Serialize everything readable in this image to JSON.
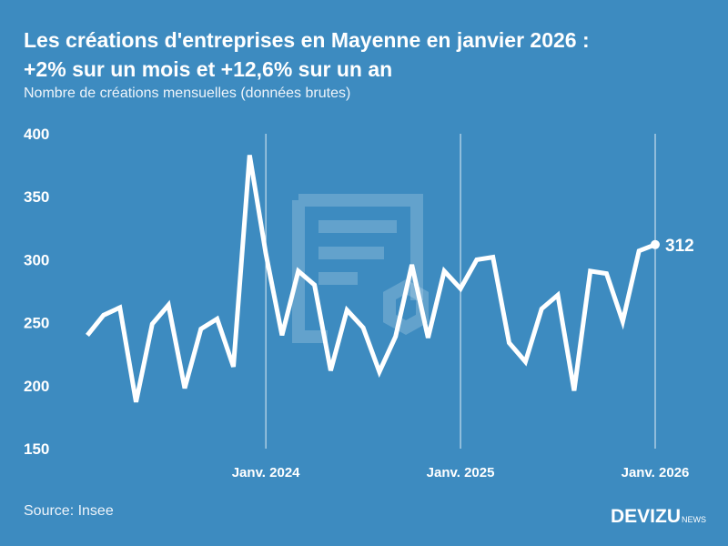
{
  "title_line1": "Les créations d'entreprises en Mayenne en janvier 2026 :",
  "title_line2": "+2% sur un mois et +12,6% sur un an",
  "subtitle": "Nombre de créations mensuelles (données brutes)",
  "source": "Source: Insee",
  "logo": {
    "main": "DEVIZU",
    "sub": "NEWS"
  },
  "colors": {
    "background": "#3d8bc0",
    "line": "#ffffff"
  },
  "chart_data": {
    "type": "line",
    "ylim": [
      150,
      400
    ],
    "yticks": [
      "150",
      "200",
      "250",
      "300",
      "350",
      "400"
    ],
    "xtick_labels": [
      {
        "label": "Janv. 2024",
        "index": 11
      },
      {
        "label": "Janv. 2025",
        "index": 23
      },
      {
        "label": "Janv. 2026",
        "index": 35
      }
    ],
    "grid": "vertical lines at January",
    "x": [
      "2023-02",
      "2023-03",
      "2023-04",
      "2023-05",
      "2023-06",
      "2023-07",
      "2023-08",
      "2023-09",
      "2023-10",
      "2023-11",
      "2023-12",
      "2024-01",
      "2024-02",
      "2024-03",
      "2024-04",
      "2024-05",
      "2024-06",
      "2024-07",
      "2024-08",
      "2024-09",
      "2024-10",
      "2024-11",
      "2024-12",
      "2025-01",
      "2025-02",
      "2025-03",
      "2025-04",
      "2025-05",
      "2025-06",
      "2025-07",
      "2025-08",
      "2025-09",
      "2025-10",
      "2025-11",
      "2025-12",
      "2026-01"
    ],
    "values": [
      240,
      256,
      262,
      187,
      249,
      264,
      198,
      245,
      253,
      215,
      383,
      305,
      240,
      291,
      280,
      212,
      260,
      246,
      211,
      239,
      296,
      238,
      291,
      277,
      300,
      302,
      234,
      219,
      261,
      272,
      196,
      291,
      289,
      251,
      307,
      312
    ],
    "last_label": "312"
  }
}
